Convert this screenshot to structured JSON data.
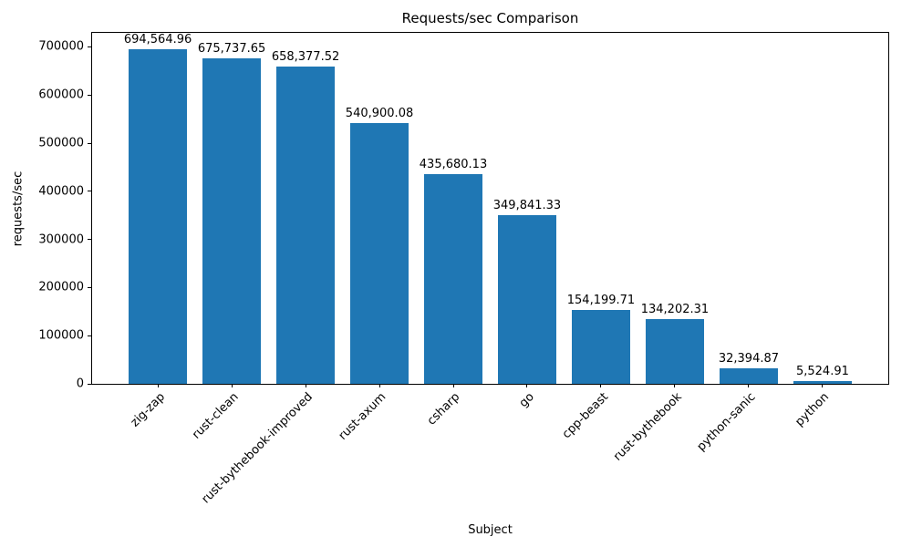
{
  "chart_data": {
    "type": "bar",
    "title": "Requests/sec Comparison",
    "xlabel": "Subject",
    "ylabel": "requests/sec",
    "categories": [
      "zig-zap",
      "rust-clean",
      "rust-bythebook-improved",
      "rust-axum",
      "csharp",
      "go",
      "cpp-beast",
      "rust-bythebook",
      "python-sanic",
      "python"
    ],
    "values": [
      694564.96,
      675737.65,
      658377.52,
      540900.08,
      435680.13,
      349841.33,
      154199.71,
      134202.31,
      32394.87,
      5524.91
    ],
    "value_labels": [
      "694,564.96",
      "675,737.65",
      "658,377.52",
      "540,900.08",
      "435,680.13",
      "349,841.33",
      "154,199.71",
      "134,202.31",
      "32,394.87",
      "5,524.91"
    ],
    "ylim": [
      0,
      729293
    ],
    "yticks": [
      0,
      100000,
      200000,
      300000,
      400000,
      500000,
      600000,
      700000
    ],
    "ytick_labels": [
      "0",
      "100000",
      "200000",
      "300000",
      "400000",
      "500000",
      "600000",
      "700000"
    ],
    "bar_color": "#1f77b4",
    "grid": false,
    "legend": false
  }
}
